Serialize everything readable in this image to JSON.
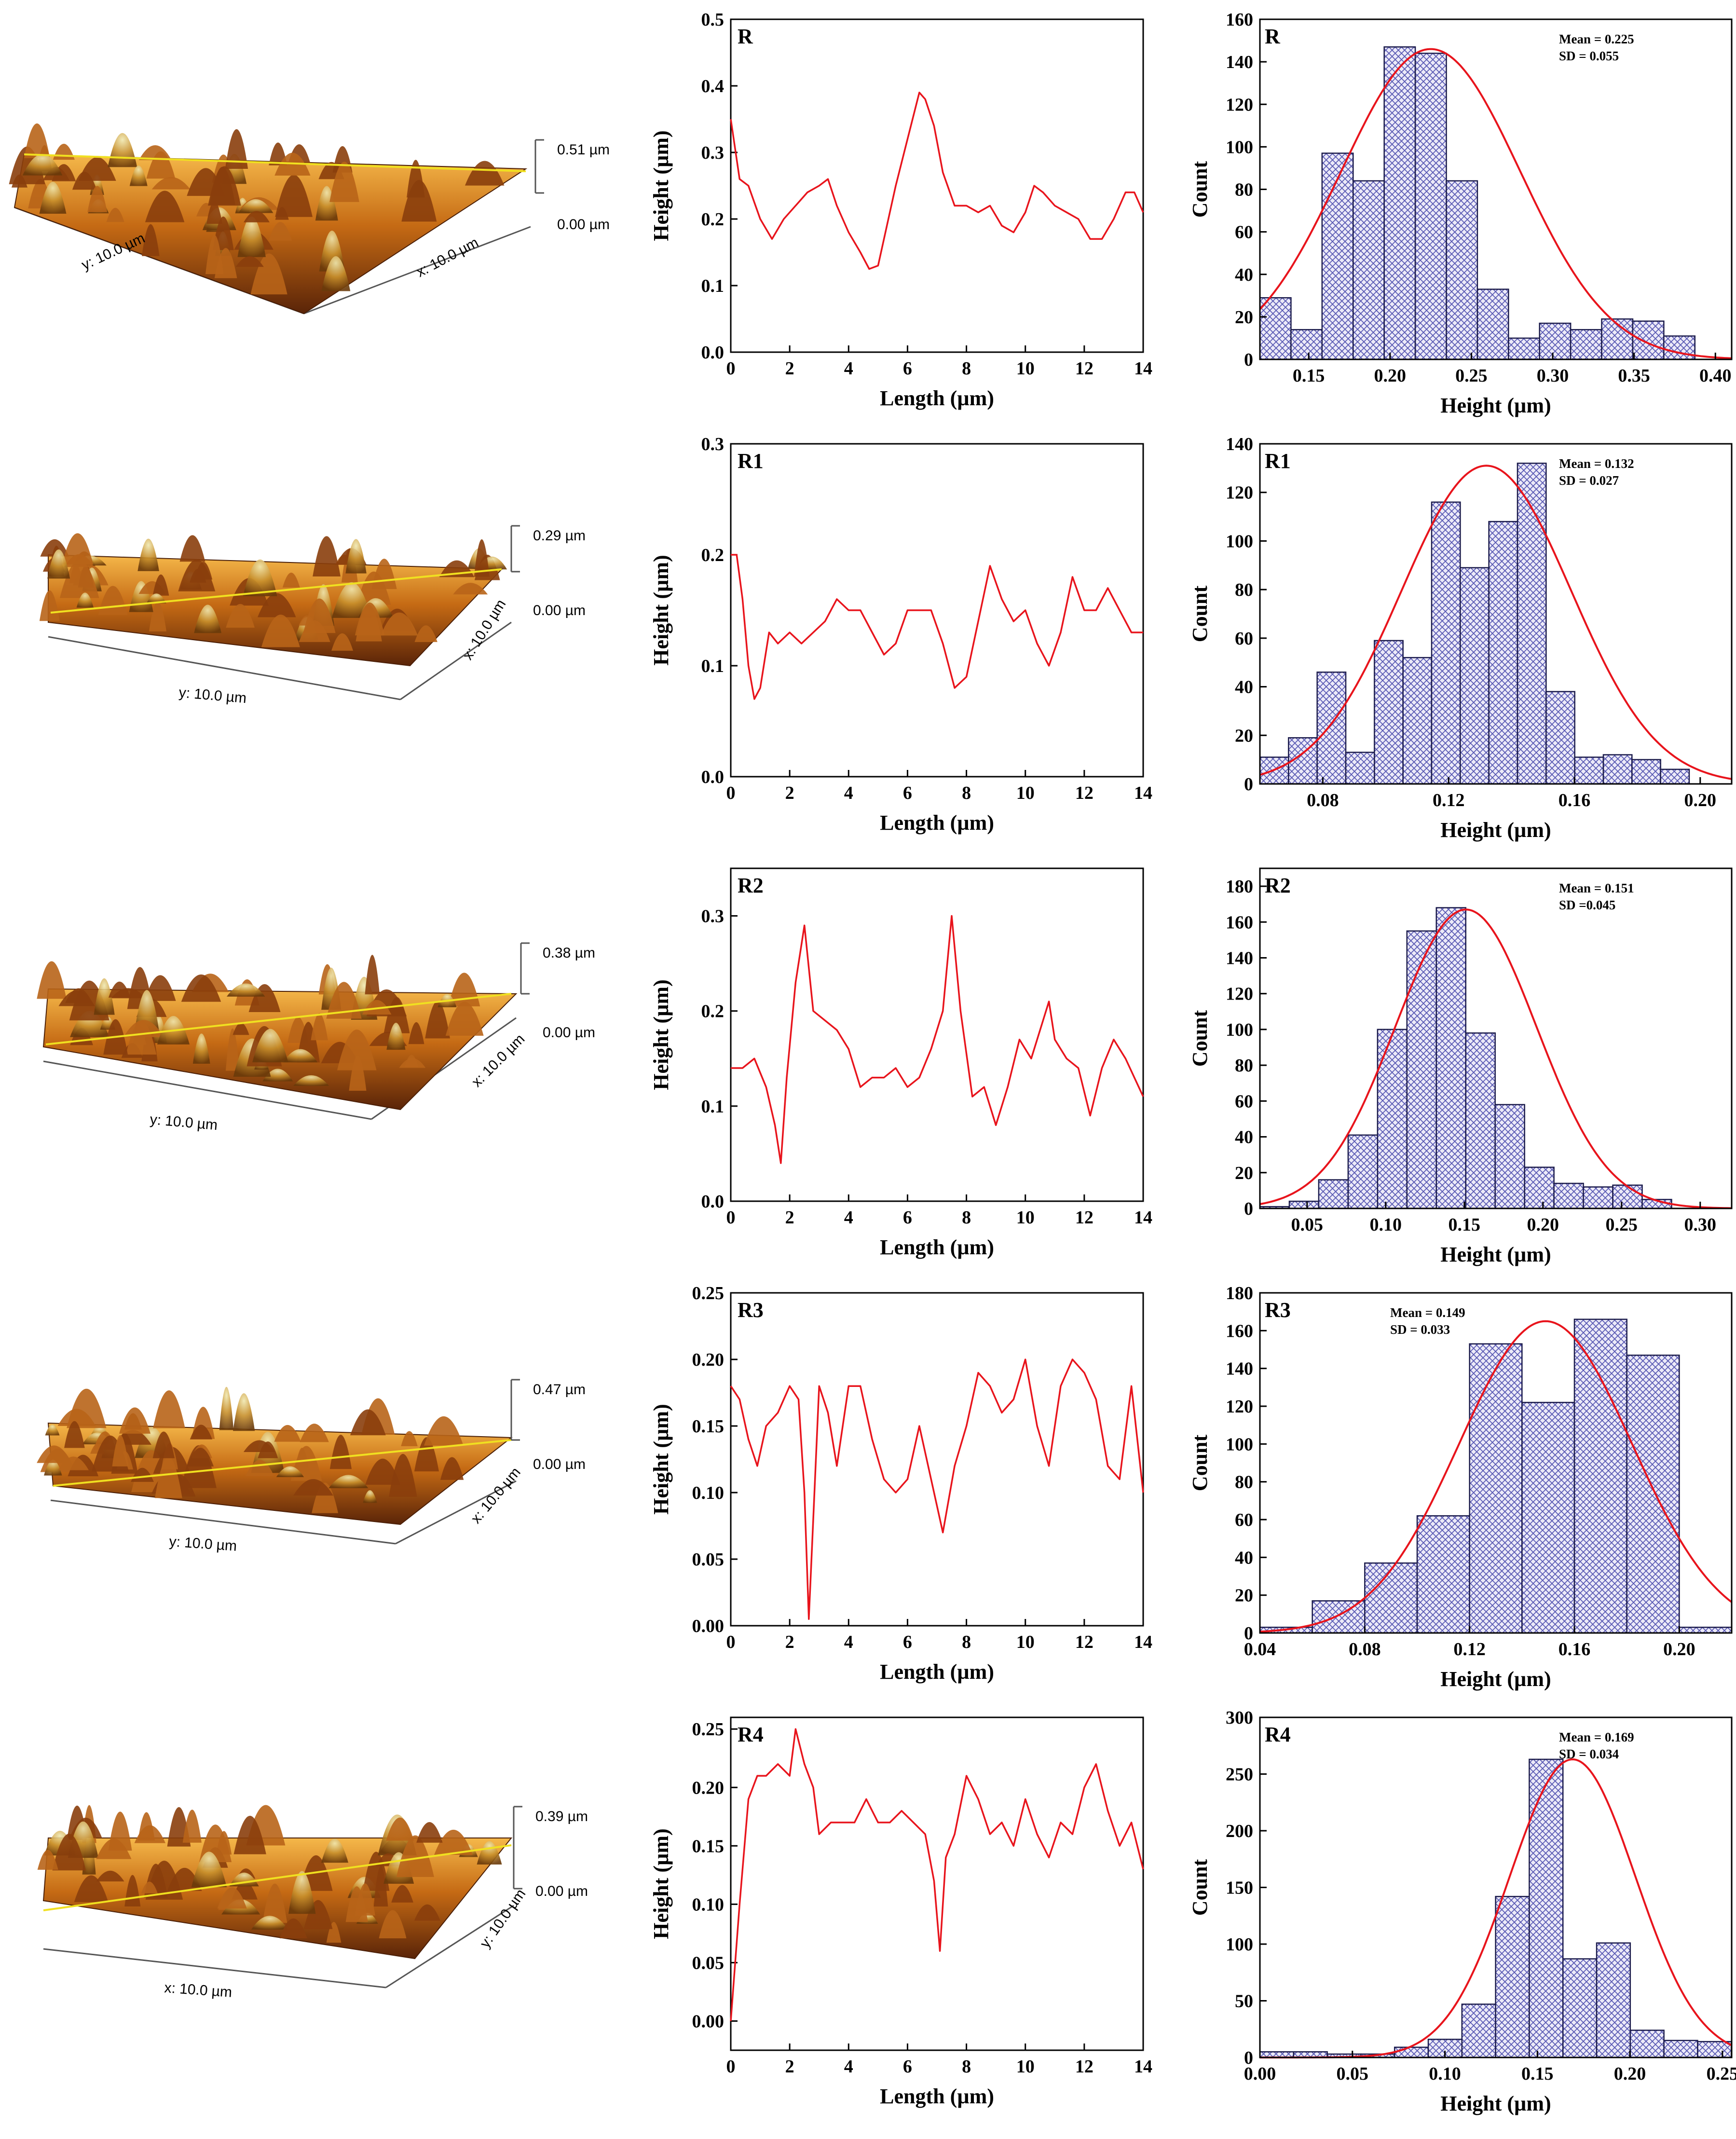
{
  "colors": {
    "profile_line": "#e8141c",
    "fit_curve": "#e8141c",
    "hist_fill": "#e8e8f6",
    "hist_hatch": "#5a5ab4",
    "hist_edge": "#1a1a4a",
    "afm_dark": "#3a1a06",
    "afm_mid": "#b3570f",
    "afm_light": "#f2a83a",
    "afm_peak": "#e8e0a0",
    "scan_line": "#f0e020"
  },
  "afm": [
    {
      "label": "R",
      "z_max": "0.51 µm",
      "z_min": "0.00 µm",
      "axis_a": "y: 10.0 µm",
      "axis_b": "x: 10.0 µm"
    },
    {
      "label": "R1",
      "z_max": "0.29 µm",
      "z_min": "0.00 µm",
      "axis_a": "y: 10.0 µm",
      "axis_b": "x: 10.0 µm"
    },
    {
      "label": "R2",
      "z_max": "0.38 µm",
      "z_min": "0.00 µm",
      "axis_a": "y: 10.0 µm",
      "axis_b": "x: 10.0 µm"
    },
    {
      "label": "R3",
      "z_max": "0.47 µm",
      "z_min": "0.00 µm",
      "axis_a": "y: 10.0 µm",
      "axis_b": "x: 10.0 µm"
    },
    {
      "label": "R4",
      "z_max": "0.39 µm",
      "z_min": "0.00 µm",
      "axis_a": "x: 10.0 µm",
      "axis_b": "y: 10.0 µm"
    }
  ],
  "chart_data": [
    {
      "type": "line",
      "label": "R",
      "xlabel": "Length (µm)",
      "ylabel": "Height (µm)",
      "xlim": [
        0,
        14
      ],
      "ylim": [
        0,
        0.5
      ],
      "xticks": [
        "0",
        "2",
        "4",
        "6",
        "8",
        "10",
        "12",
        "14"
      ],
      "yticks": [
        "0.0",
        "0.1",
        "0.2",
        "0.3",
        "0.4",
        "0.5"
      ],
      "x": [
        0,
        0.3,
        0.6,
        1,
        1.4,
        1.8,
        2.2,
        2.6,
        3.0,
        3.3,
        3.6,
        4.0,
        4.4,
        4.7,
        5.0,
        5.3,
        5.6,
        6.0,
        6.4,
        6.6,
        6.9,
        7.2,
        7.6,
        8.0,
        8.4,
        8.8,
        9.2,
        9.6,
        10.0,
        10.3,
        10.6,
        11.0,
        11.4,
        11.8,
        12.2,
        12.6,
        13.0,
        13.4,
        13.7,
        14.0
      ],
      "y": [
        0.35,
        0.26,
        0.25,
        0.2,
        0.17,
        0.2,
        0.22,
        0.24,
        0.25,
        0.26,
        0.22,
        0.18,
        0.15,
        0.125,
        0.13,
        0.19,
        0.25,
        0.32,
        0.39,
        0.38,
        0.34,
        0.27,
        0.22,
        0.22,
        0.21,
        0.22,
        0.19,
        0.18,
        0.21,
        0.25,
        0.24,
        0.22,
        0.21,
        0.2,
        0.17,
        0.17,
        0.2,
        0.24,
        0.24,
        0.21
      ]
    },
    {
      "type": "histogram",
      "label": "R",
      "xlabel": "Height (µm)",
      "ylabel": "Count",
      "xlim": [
        0.12,
        0.41
      ],
      "ylim": [
        0,
        160
      ],
      "xticks": [
        "0.15",
        "0.20",
        "0.25",
        "0.30",
        "0.35",
        "0.40"
      ],
      "yticks": [
        "0",
        "20",
        "40",
        "60",
        "80",
        "100",
        "120",
        "140",
        "160"
      ],
      "bin_start": 0.12,
      "bin_width": 0.0191,
      "counts": [
        29,
        14,
        97,
        84,
        147,
        144,
        84,
        33,
        10,
        17,
        14,
        19,
        18,
        11
      ],
      "mean": 0.225,
      "sd": 0.055,
      "fit_peak": 146,
      "mean_text": "Mean = 0.225",
      "sd_text": "SD = 0.055"
    },
    {
      "type": "line",
      "label": "R1",
      "xlabel": "Length (µm)",
      "ylabel": "Height (µm)",
      "xlim": [
        0,
        14
      ],
      "ylim": [
        0,
        0.3
      ],
      "xticks": [
        "0",
        "2",
        "4",
        "6",
        "8",
        "10",
        "12",
        "14"
      ],
      "yticks": [
        "0.0",
        "0.1",
        "0.2",
        "0.3"
      ],
      "x": [
        0,
        0.2,
        0.4,
        0.6,
        0.8,
        1.0,
        1.3,
        1.6,
        2.0,
        2.4,
        2.8,
        3.2,
        3.6,
        4.0,
        4.4,
        4.8,
        5.2,
        5.6,
        6.0,
        6.4,
        6.8,
        7.2,
        7.6,
        8.0,
        8.4,
        8.8,
        9.2,
        9.6,
        10.0,
        10.4,
        10.8,
        11.2,
        11.6,
        12.0,
        12.4,
        12.8,
        13.2,
        13.6,
        14.0
      ],
      "y": [
        0.2,
        0.2,
        0.16,
        0.1,
        0.07,
        0.08,
        0.13,
        0.12,
        0.13,
        0.12,
        0.13,
        0.14,
        0.16,
        0.15,
        0.15,
        0.13,
        0.11,
        0.12,
        0.15,
        0.15,
        0.15,
        0.12,
        0.08,
        0.09,
        0.14,
        0.19,
        0.16,
        0.14,
        0.15,
        0.12,
        0.1,
        0.13,
        0.18,
        0.15,
        0.15,
        0.17,
        0.15,
        0.13,
        0.13
      ]
    },
    {
      "type": "histogram",
      "label": "R1",
      "xlabel": "Height (µm)",
      "ylabel": "Count",
      "xlim": [
        0.06,
        0.21
      ],
      "ylim": [
        0,
        140
      ],
      "xticks": [
        "0.08",
        "0.12",
        "0.16",
        "0.20"
      ],
      "yticks": [
        "0",
        "20",
        "40",
        "60",
        "80",
        "100",
        "120",
        "140"
      ],
      "bin_start": 0.06,
      "bin_width": 0.0091,
      "counts": [
        11,
        19,
        46,
        13,
        59,
        52,
        116,
        89,
        108,
        132,
        38,
        11,
        12,
        10,
        6
      ],
      "mean": 0.132,
      "sd": 0.027,
      "fit_peak": 131,
      "mean_text": "Mean = 0.132",
      "sd_text": "SD = 0.027"
    },
    {
      "type": "line",
      "label": "R2",
      "xlabel": "Length (µm)",
      "ylabel": "Height (µm)",
      "xlim": [
        0,
        14
      ],
      "ylim": [
        0,
        0.35
      ],
      "xticks": [
        "0",
        "2",
        "4",
        "6",
        "8",
        "10",
        "12",
        "14"
      ],
      "yticks": [
        "0.0",
        "0.1",
        "0.2",
        "0.3"
      ],
      "x": [
        0,
        0.4,
        0.8,
        1.2,
        1.5,
        1.7,
        1.9,
        2.2,
        2.5,
        2.8,
        3.2,
        3.6,
        4.0,
        4.4,
        4.8,
        5.2,
        5.6,
        6.0,
        6.4,
        6.8,
        7.2,
        7.5,
        7.8,
        8.2,
        8.6,
        9.0,
        9.4,
        9.8,
        10.2,
        10.6,
        10.8,
        11.0,
        11.4,
        11.8,
        12.2,
        12.6,
        13.0,
        13.4,
        14.0
      ],
      "y": [
        0.14,
        0.14,
        0.15,
        0.12,
        0.08,
        0.04,
        0.13,
        0.23,
        0.29,
        0.2,
        0.19,
        0.18,
        0.16,
        0.12,
        0.13,
        0.13,
        0.14,
        0.12,
        0.13,
        0.16,
        0.2,
        0.3,
        0.2,
        0.11,
        0.12,
        0.08,
        0.12,
        0.17,
        0.15,
        0.19,
        0.21,
        0.17,
        0.15,
        0.14,
        0.09,
        0.14,
        0.17,
        0.15,
        0.11
      ]
    },
    {
      "type": "histogram",
      "label": "R2",
      "xlabel": "Height (µm)",
      "ylabel": "Count",
      "xlim": [
        0.02,
        0.32
      ],
      "ylim": [
        0,
        190
      ],
      "xticks": [
        "0.05",
        "0.10",
        "0.15",
        "0.20",
        "0.25",
        "0.30"
      ],
      "yticks": [
        "0",
        "20",
        "40",
        "60",
        "80",
        "100",
        "120",
        "140",
        "160",
        "180"
      ],
      "bin_start": 0.02,
      "bin_width": 0.0187,
      "counts": [
        1,
        4,
        16,
        41,
        100,
        155,
        168,
        98,
        58,
        23,
        14,
        12,
        13,
        5
      ],
      "mean": 0.151,
      "sd": 0.045,
      "fit_peak": 167,
      "mean_text": "Mean = 0.151",
      "sd_text": "SD =0.045"
    },
    {
      "type": "line",
      "label": "R3",
      "xlabel": "Length (µm)",
      "ylabel": "Height (µm)",
      "xlim": [
        0,
        14
      ],
      "ylim": [
        0,
        0.25
      ],
      "xticks": [
        "0",
        "2",
        "4",
        "6",
        "8",
        "10",
        "12",
        "14"
      ],
      "yticks": [
        "0.00",
        "0.05",
        "0.10",
        "0.15",
        "0.20",
        "0.25"
      ],
      "x": [
        0,
        0.3,
        0.6,
        0.9,
        1.2,
        1.6,
        2.0,
        2.3,
        2.5,
        2.65,
        2.8,
        3.0,
        3.3,
        3.6,
        4.0,
        4.4,
        4.8,
        5.2,
        5.6,
        6.0,
        6.4,
        6.8,
        7.2,
        7.6,
        8.0,
        8.4,
        8.8,
        9.2,
        9.6,
        10.0,
        10.4,
        10.8,
        11.2,
        11.6,
        12.0,
        12.4,
        12.8,
        13.2,
        13.6,
        14.0
      ],
      "y": [
        0.18,
        0.17,
        0.14,
        0.12,
        0.15,
        0.16,
        0.18,
        0.17,
        0.1,
        0.005,
        0.08,
        0.18,
        0.16,
        0.12,
        0.18,
        0.18,
        0.14,
        0.11,
        0.1,
        0.11,
        0.15,
        0.11,
        0.07,
        0.12,
        0.15,
        0.19,
        0.18,
        0.16,
        0.17,
        0.2,
        0.15,
        0.12,
        0.18,
        0.2,
        0.19,
        0.17,
        0.12,
        0.11,
        0.18,
        0.1
      ]
    },
    {
      "type": "histogram",
      "label": "R3",
      "xlabel": "Height (µm)",
      "ylabel": "Count",
      "xlim": [
        0.04,
        0.22
      ],
      "ylim": [
        0,
        180
      ],
      "xticks": [
        "0.04",
        "0.08",
        "0.12",
        "0.16",
        "0.20"
      ],
      "yticks": [
        "0",
        "20",
        "40",
        "60",
        "80",
        "100",
        "120",
        "140",
        "160",
        "180"
      ],
      "bin_start": 0.04,
      "bin_width": 0.02,
      "counts": [
        3,
        17,
        37,
        62,
        153,
        122,
        166,
        147,
        3
      ],
      "mean": 0.149,
      "sd": 0.033,
      "fit_peak": 165,
      "mean_text": "Mean = 0.149",
      "sd_text": "SD = 0.033"
    },
    {
      "type": "line",
      "label": "R4",
      "xlabel": "Length (µm)",
      "ylabel": "Height (µm)",
      "xlim": [
        0,
        14
      ],
      "ylim": [
        -0.025,
        0.26
      ],
      "xticks": [
        "0",
        "2",
        "4",
        "6",
        "8",
        "10",
        "12",
        "14"
      ],
      "yticks": [
        "0.00",
        "0.05",
        "0.10",
        "0.15",
        "0.20",
        "0.25"
      ],
      "x": [
        0,
        0.3,
        0.6,
        0.9,
        1.2,
        1.6,
        2.0,
        2.2,
        2.5,
        2.8,
        3.0,
        3.4,
        3.8,
        4.2,
        4.6,
        5.0,
        5.4,
        5.8,
        6.2,
        6.6,
        6.9,
        7.1,
        7.3,
        7.6,
        8.0,
        8.4,
        8.8,
        9.2,
        9.6,
        10.0,
        10.4,
        10.8,
        11.2,
        11.6,
        12.0,
        12.4,
        12.8,
        13.2,
        13.6,
        14.0
      ],
      "y": [
        0.0,
        0.1,
        0.19,
        0.21,
        0.21,
        0.22,
        0.21,
        0.25,
        0.22,
        0.2,
        0.16,
        0.17,
        0.17,
        0.17,
        0.19,
        0.17,
        0.17,
        0.18,
        0.17,
        0.16,
        0.12,
        0.06,
        0.14,
        0.16,
        0.21,
        0.19,
        0.16,
        0.17,
        0.15,
        0.19,
        0.16,
        0.14,
        0.17,
        0.16,
        0.2,
        0.22,
        0.18,
        0.15,
        0.17,
        0.13
      ]
    },
    {
      "type": "histogram",
      "label": "R4",
      "xlabel": "Height (µm)",
      "ylabel": "Count",
      "xlim": [
        0,
        0.255
      ],
      "ylim": [
        0,
        300
      ],
      "xticks": [
        "0.00",
        "0.05",
        "0.10",
        "0.15",
        "0.20",
        "0.25"
      ],
      "yticks": [
        "0",
        "50",
        "100",
        "150",
        "200",
        "250",
        "300"
      ],
      "bin_start": 0.0,
      "bin_width": 0.0182,
      "counts": [
        5,
        5,
        3,
        3,
        9,
        16,
        47,
        142,
        263,
        87,
        101,
        24,
        15,
        14
      ],
      "mean": 0.169,
      "sd": 0.034,
      "fit_peak": 263,
      "mean_text": "Mean = 0.169",
      "sd_text": "SD = 0.034"
    }
  ]
}
